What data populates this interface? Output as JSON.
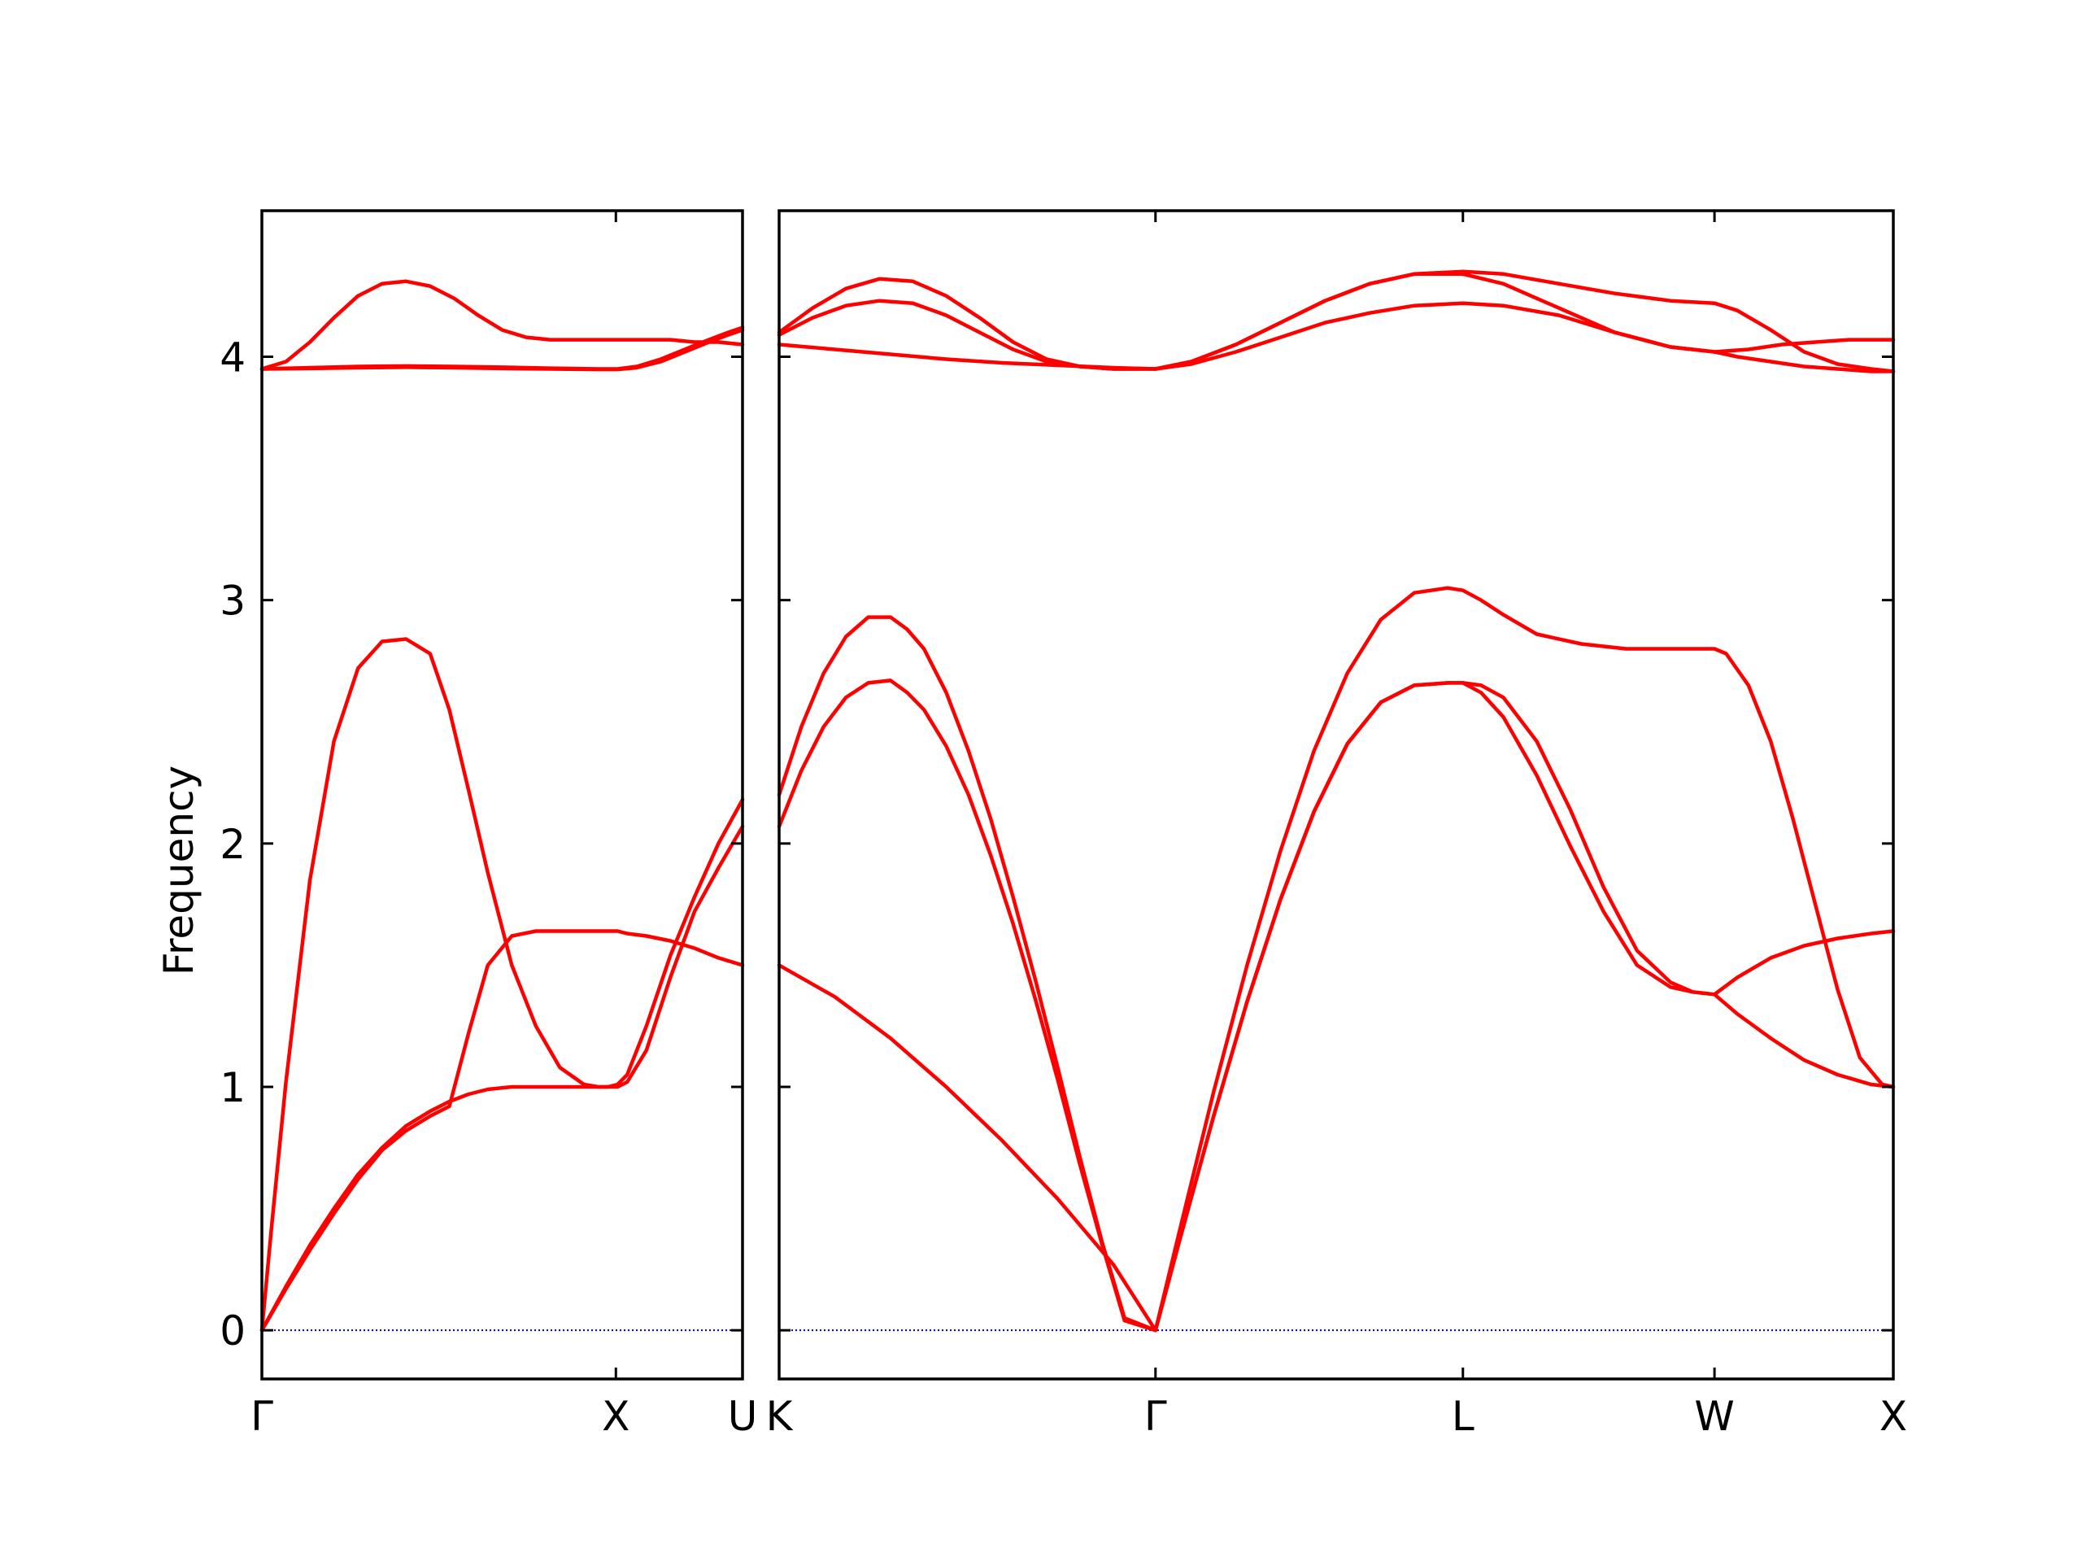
{
  "chart_data": {
    "type": "line",
    "ylabel": "Frequency",
    "ylim": [
      -0.2,
      4.6
    ],
    "yticks": [
      0,
      1,
      2,
      3,
      4
    ],
    "colors": {
      "band": "#ff0000",
      "zero": "#0000aa",
      "axes": "#000000"
    },
    "grid": false,
    "panels": [
      {
        "xlim": [
          0,
          1
        ],
        "ticks": [
          {
            "pos": 0,
            "label": "Γ"
          },
          {
            "pos": 0.7365,
            "label": "X"
          },
          {
            "pos": 1.0,
            "label": "U"
          }
        ],
        "series": [
          {
            "x": [
              0,
              0.02,
              0.05,
              0.1,
              0.15,
              0.2,
              0.25,
              0.3,
              0.35,
              0.39,
              0.43,
              0.47,
              0.52,
              0.57,
              0.62,
              0.67,
              0.7,
              0.72,
              0.74,
              0.76,
              0.8,
              0.85,
              0.9,
              0.95,
              1.0
            ],
            "y": [
              0.0,
              0.42,
              1.02,
              1.85,
              2.42,
              2.72,
              2.83,
              2.84,
              2.78,
              2.55,
              2.22,
              1.88,
              1.5,
              1.25,
              1.08,
              1.01,
              1.0,
              1.0,
              1.01,
              1.05,
              1.25,
              1.54,
              1.78,
              2.0,
              2.18
            ]
          },
          {
            "x": [
              0,
              0.05,
              0.1,
              0.15,
              0.2,
              0.25,
              0.3,
              0.35,
              0.39,
              0.43,
              0.47,
              0.52,
              0.57,
              0.62,
              0.67,
              0.7,
              0.72,
              0.74,
              0.76,
              0.8,
              0.85,
              0.9,
              0.95,
              1.0
            ],
            "y": [
              0.0,
              0.17,
              0.33,
              0.48,
              0.62,
              0.74,
              0.82,
              0.88,
              0.92,
              1.22,
              1.5,
              1.62,
              1.64,
              1.64,
              1.64,
              1.64,
              1.64,
              1.64,
              1.63,
              1.62,
              1.6,
              1.57,
              1.53,
              1.5
            ]
          },
          {
            "x": [
              0,
              0.05,
              0.1,
              0.15,
              0.2,
              0.25,
              0.3,
              0.35,
              0.39,
              0.43,
              0.47,
              0.52,
              0.57,
              0.62,
              0.67,
              0.7,
              0.72,
              0.74,
              0.76,
              0.8,
              0.85,
              0.9,
              0.95,
              1.0
            ],
            "y": [
              0.0,
              0.18,
              0.35,
              0.5,
              0.64,
              0.75,
              0.84,
              0.9,
              0.94,
              0.97,
              0.99,
              1.0,
              1.0,
              1.0,
              1.0,
              1.0,
              1.0,
              1.0,
              1.02,
              1.15,
              1.45,
              1.72,
              1.9,
              2.07
            ]
          },
          {
            "x": [
              0,
              0.05,
              0.1,
              0.15,
              0.2,
              0.25,
              0.3,
              0.35,
              0.4,
              0.45,
              0.5,
              0.55,
              0.6,
              0.65,
              0.7,
              0.74,
              0.8,
              0.85,
              0.9,
              0.95,
              1.0
            ],
            "y": [
              3.95,
              3.98,
              4.06,
              4.16,
              4.25,
              4.3,
              4.31,
              4.29,
              4.24,
              4.17,
              4.11,
              4.08,
              4.07,
              4.07,
              4.07,
              4.07,
              4.07,
              4.07,
              4.06,
              4.06,
              4.05
            ]
          },
          {
            "x": [
              0,
              0.1,
              0.2,
              0.3,
              0.4,
              0.5,
              0.6,
              0.7,
              0.74,
              0.78,
              0.83,
              0.88,
              0.93,
              0.97,
              1.0
            ],
            "y": [
              3.95,
              3.955,
              3.96,
              3.962,
              3.96,
              3.957,
              3.953,
              3.95,
              3.95,
              3.96,
              3.99,
              4.03,
              4.07,
              4.1,
              4.12
            ]
          },
          {
            "x": [
              0,
              0.1,
              0.2,
              0.3,
              0.4,
              0.5,
              0.6,
              0.7,
              0.74,
              0.78,
              0.83,
              0.88,
              0.93,
              0.97,
              1.0
            ],
            "y": [
              3.95,
              3.952,
              3.955,
              3.957,
              3.955,
              3.952,
              3.95,
              3.948,
              3.948,
              3.955,
              3.98,
              4.02,
              4.06,
              4.09,
              4.11
            ]
          }
        ]
      },
      {
        "xlim": [
          0,
          1
        ],
        "ticks": [
          {
            "pos": 0,
            "label": "K"
          },
          {
            "pos": 0.3378,
            "label": "Γ"
          },
          {
            "pos": 0.6137,
            "label": "L"
          },
          {
            "pos": 0.8395,
            "label": "W"
          },
          {
            "pos": 1.0,
            "label": "X"
          }
        ],
        "series": [
          {
            "x": [
              0,
              0.02,
              0.04,
              0.06,
              0.08,
              0.1,
              0.115,
              0.13,
              0.15,
              0.17,
              0.19,
              0.21,
              0.23,
              0.25,
              0.27,
              0.29,
              0.31,
              0.3378
            ],
            "y": [
              2.2,
              2.48,
              2.7,
              2.85,
              2.93,
              2.93,
              2.88,
              2.8,
              2.62,
              2.38,
              2.1,
              1.78,
              1.44,
              1.08,
              0.71,
              0.36,
              0.05,
              0.0
            ]
          },
          {
            "x": [
              0,
              0.02,
              0.04,
              0.06,
              0.08,
              0.1,
              0.115,
              0.13,
              0.15,
              0.17,
              0.19,
              0.21,
              0.23,
              0.25,
              0.27,
              0.29,
              0.31,
              0.3378
            ],
            "y": [
              2.07,
              2.3,
              2.48,
              2.6,
              2.66,
              2.67,
              2.62,
              2.55,
              2.4,
              2.2,
              1.95,
              1.67,
              1.36,
              1.03,
              0.68,
              0.35,
              0.04,
              0.0
            ]
          },
          {
            "x": [
              0,
              0.05,
              0.1,
              0.15,
              0.2,
              0.25,
              0.3,
              0.3378
            ],
            "y": [
              1.5,
              1.37,
              1.2,
              1.0,
              0.78,
              0.54,
              0.27,
              0.0
            ]
          },
          {
            "x": [
              0.3378,
              0.36,
              0.39,
              0.42,
              0.45,
              0.48,
              0.51,
              0.54,
              0.57,
              0.6,
              0.6137,
              0.63,
              0.65,
              0.68,
              0.72,
              0.76,
              0.8,
              0.8395,
              0.85,
              0.87,
              0.89,
              0.91,
              0.93,
              0.95,
              0.97,
              0.99,
              1.0
            ],
            "y": [
              0.0,
              0.42,
              0.98,
              1.5,
              1.97,
              2.38,
              2.7,
              2.92,
              3.03,
              3.05,
              3.04,
              3.0,
              2.94,
              2.86,
              2.82,
              2.8,
              2.8,
              2.8,
              2.78,
              2.65,
              2.42,
              2.1,
              1.75,
              1.4,
              1.12,
              1.01,
              1.0
            ]
          },
          {
            "x": [
              0.3378,
              0.36,
              0.39,
              0.42,
              0.45,
              0.48,
              0.51,
              0.54,
              0.57,
              0.6,
              0.6137,
              0.63,
              0.65,
              0.68,
              0.71,
              0.74,
              0.77,
              0.8,
              0.82,
              0.8395
            ],
            "y": [
              0.0,
              0.38,
              0.88,
              1.35,
              1.77,
              2.13,
              2.41,
              2.58,
              2.65,
              2.66,
              2.66,
              2.65,
              2.6,
              2.42,
              2.14,
              1.82,
              1.56,
              1.43,
              1.39,
              1.38
            ]
          },
          {
            "x": [
              0.3378,
              0.36,
              0.39,
              0.42,
              0.45,
              0.48,
              0.51,
              0.54,
              0.57,
              0.6,
              0.6137,
              0.63,
              0.65,
              0.68,
              0.71,
              0.74,
              0.77,
              0.8,
              0.82,
              0.8395
            ],
            "y": [
              0.0,
              0.38,
              0.88,
              1.35,
              1.77,
              2.13,
              2.41,
              2.58,
              2.65,
              2.66,
              2.66,
              2.62,
              2.52,
              2.28,
              1.99,
              1.72,
              1.5,
              1.41,
              1.39,
              1.38
            ]
          },
          {
            "x": [
              0.8395,
              0.86,
              0.89,
              0.92,
              0.95,
              0.98,
              1.0
            ],
            "y": [
              1.38,
              1.45,
              1.53,
              1.58,
              1.61,
              1.63,
              1.64
            ]
          },
          {
            "x": [
              0.8395,
              0.86,
              0.89,
              0.92,
              0.95,
              0.98,
              1.0
            ],
            "y": [
              1.38,
              1.3,
              1.2,
              1.11,
              1.05,
              1.01,
              1.0
            ]
          },
          {
            "x": [
              0,
              0.03,
              0.06,
              0.09,
              0.12,
              0.15,
              0.18,
              0.21,
              0.24,
              0.27,
              0.3,
              0.3378,
              0.37,
              0.41,
              0.45,
              0.49,
              0.53,
              0.57,
              0.6137,
              0.65,
              0.7,
              0.75,
              0.8,
              0.8395,
              0.86,
              0.89,
              0.92,
              0.95,
              0.98,
              1.0
            ],
            "y": [
              4.1,
              4.2,
              4.28,
              4.32,
              4.31,
              4.25,
              4.16,
              4.06,
              3.99,
              3.96,
              3.95,
              3.95,
              3.98,
              4.05,
              4.14,
              4.23,
              4.3,
              4.34,
              4.35,
              4.34,
              4.3,
              4.26,
              4.23,
              4.22,
              4.19,
              4.11,
              4.02,
              3.97,
              3.95,
              3.94
            ]
          },
          {
            "x": [
              0,
              0.03,
              0.06,
              0.09,
              0.12,
              0.15,
              0.18,
              0.21,
              0.24,
              0.27,
              0.3,
              0.3378,
              0.37,
              0.41,
              0.45,
              0.49,
              0.53,
              0.57,
              0.6137,
              0.65,
              0.7,
              0.75,
              0.8,
              0.8395,
              0.86,
              0.89,
              0.92,
              0.95,
              0.98,
              1.0
            ],
            "y": [
              4.09,
              4.16,
              4.21,
              4.23,
              4.22,
              4.17,
              4.1,
              4.03,
              3.98,
              3.96,
              3.95,
              3.95,
              3.98,
              4.05,
              4.14,
              4.23,
              4.3,
              4.34,
              4.34,
              4.3,
              4.2,
              4.1,
              4.04,
              4.02,
              4.0,
              3.98,
              3.96,
              3.95,
              3.94,
              3.94
            ]
          },
          {
            "x": [
              0,
              0.05,
              0.1,
              0.15,
              0.2,
              0.25,
              0.3,
              0.3378,
              0.37,
              0.41,
              0.45,
              0.49,
              0.53,
              0.57,
              0.6137,
              0.65,
              0.7,
              0.75,
              0.8,
              0.8395,
              0.87,
              0.9,
              0.93,
              0.96,
              1.0
            ],
            "y": [
              4.05,
              4.03,
              4.01,
              3.99,
              3.975,
              3.965,
              3.955,
              3.95,
              3.97,
              4.02,
              4.08,
              4.14,
              4.18,
              4.21,
              4.22,
              4.21,
              4.17,
              4.1,
              4.04,
              4.02,
              4.03,
              4.05,
              4.06,
              4.07,
              4.07
            ]
          }
        ]
      }
    ]
  }
}
